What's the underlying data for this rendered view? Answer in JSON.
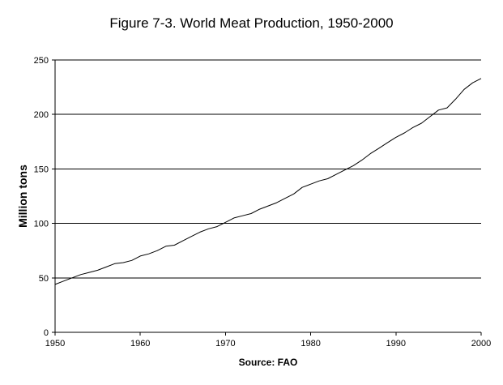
{
  "chart_data": {
    "type": "line",
    "title": "Figure 7-3. World Meat Production, 1950-2000",
    "ylabel": "Million tons",
    "xlabel": "Source: FAO",
    "xlim": [
      1950,
      2000
    ],
    "ylim": [
      0,
      250
    ],
    "x_ticks": [
      1950,
      1960,
      1970,
      1980,
      1990,
      2000
    ],
    "y_ticks": [
      0,
      50,
      100,
      150,
      200,
      250
    ],
    "grid": "horizontal",
    "series": [
      {
        "color": "#000000",
        "x": [
          1950,
          1951,
          1952,
          1953,
          1954,
          1955,
          1956,
          1957,
          1958,
          1959,
          1960,
          1961,
          1962,
          1963,
          1964,
          1965,
          1966,
          1967,
          1968,
          1969,
          1970,
          1971,
          1972,
          1973,
          1974,
          1975,
          1976,
          1977,
          1978,
          1979,
          1980,
          1981,
          1982,
          1983,
          1984,
          1985,
          1986,
          1987,
          1988,
          1989,
          1990,
          1991,
          1992,
          1993,
          1994,
          1995,
          1996,
          1997,
          1998,
          1999,
          2000
        ],
        "values": [
          44,
          47,
          50,
          53,
          55,
          57,
          60,
          63,
          64,
          66,
          70,
          72,
          75,
          79,
          80,
          84,
          88,
          92,
          95,
          97,
          101,
          105,
          107,
          109,
          113,
          116,
          119,
          123,
          127,
          133,
          136,
          139,
          141,
          145,
          149,
          153,
          158,
          164,
          169,
          174,
          179,
          183,
          188,
          192,
          198,
          204,
          206,
          214,
          223,
          229,
          233
        ]
      }
    ]
  }
}
